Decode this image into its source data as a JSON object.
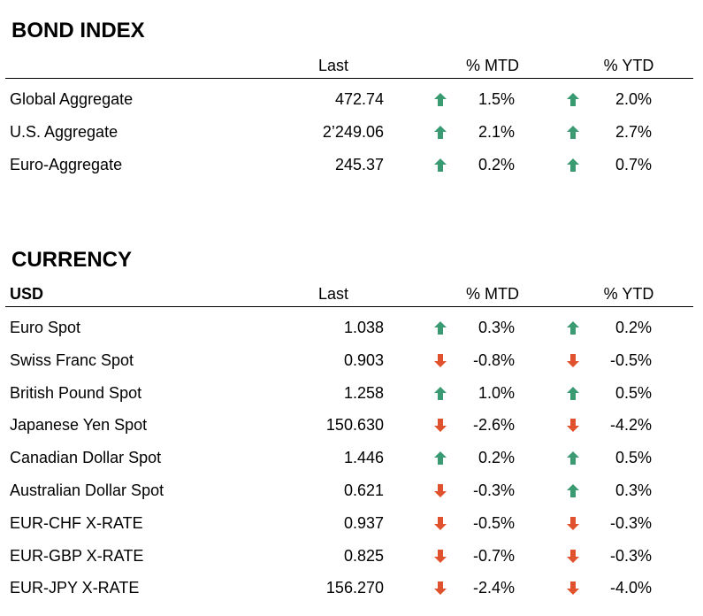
{
  "colors": {
    "up": "#3a9a72",
    "down": "#e0522d"
  },
  "bond_index": {
    "title": "BOND INDEX",
    "headers": {
      "name": "",
      "last": "Last",
      "mtd": "% MTD",
      "ytd": "% YTD"
    },
    "rows": [
      {
        "name": "Global Aggregate",
        "last": "472.74",
        "mtd": "1.5%",
        "mtd_dir": "up",
        "ytd": "2.0%",
        "ytd_dir": "up"
      },
      {
        "name": "U.S. Aggregate",
        "last": "2’249.06",
        "mtd": "2.1%",
        "mtd_dir": "up",
        "ytd": "2.7%",
        "ytd_dir": "up"
      },
      {
        "name": "Euro-Aggregate",
        "last": "245.37",
        "mtd": "0.2%",
        "mtd_dir": "up",
        "ytd": "0.7%",
        "ytd_dir": "up"
      }
    ]
  },
  "currency": {
    "title": "CURRENCY",
    "headers": {
      "name": "USD",
      "last": "Last",
      "mtd": "% MTD",
      "ytd": "% YTD"
    },
    "rows": [
      {
        "name": "Euro Spot",
        "last": "1.038",
        "mtd": "0.3%",
        "mtd_dir": "up",
        "ytd": "0.2%",
        "ytd_dir": "up"
      },
      {
        "name": "Swiss Franc Spot",
        "last": "0.903",
        "mtd": "-0.8%",
        "mtd_dir": "down",
        "ytd": "-0.5%",
        "ytd_dir": "down"
      },
      {
        "name": "British Pound Spot",
        "last": "1.258",
        "mtd": "1.0%",
        "mtd_dir": "up",
        "ytd": "0.5%",
        "ytd_dir": "up"
      },
      {
        "name": "Japanese Yen Spot",
        "last": "150.630",
        "mtd": "-2.6%",
        "mtd_dir": "down",
        "ytd": "-4.2%",
        "ytd_dir": "down"
      },
      {
        "name": "Canadian Dollar Spot",
        "last": "1.446",
        "mtd": "0.2%",
        "mtd_dir": "up",
        "ytd": "0.5%",
        "ytd_dir": "up"
      },
      {
        "name": "Australian Dollar Spot",
        "last": "0.621",
        "mtd": "-0.3%",
        "mtd_dir": "down",
        "ytd": "0.3%",
        "ytd_dir": "up"
      },
      {
        "name": "EUR-CHF X-RATE",
        "last": "0.937",
        "mtd": "-0.5%",
        "mtd_dir": "down",
        "ytd": "-0.3%",
        "ytd_dir": "down"
      },
      {
        "name": "EUR-GBP X-RATE",
        "last": "0.825",
        "mtd": "-0.7%",
        "mtd_dir": "down",
        "ytd": "-0.3%",
        "ytd_dir": "down"
      },
      {
        "name": "EUR-JPY X-RATE",
        "last": "156.270",
        "mtd": "-2.4%",
        "mtd_dir": "down",
        "ytd": "-4.0%",
        "ytd_dir": "down"
      }
    ]
  }
}
